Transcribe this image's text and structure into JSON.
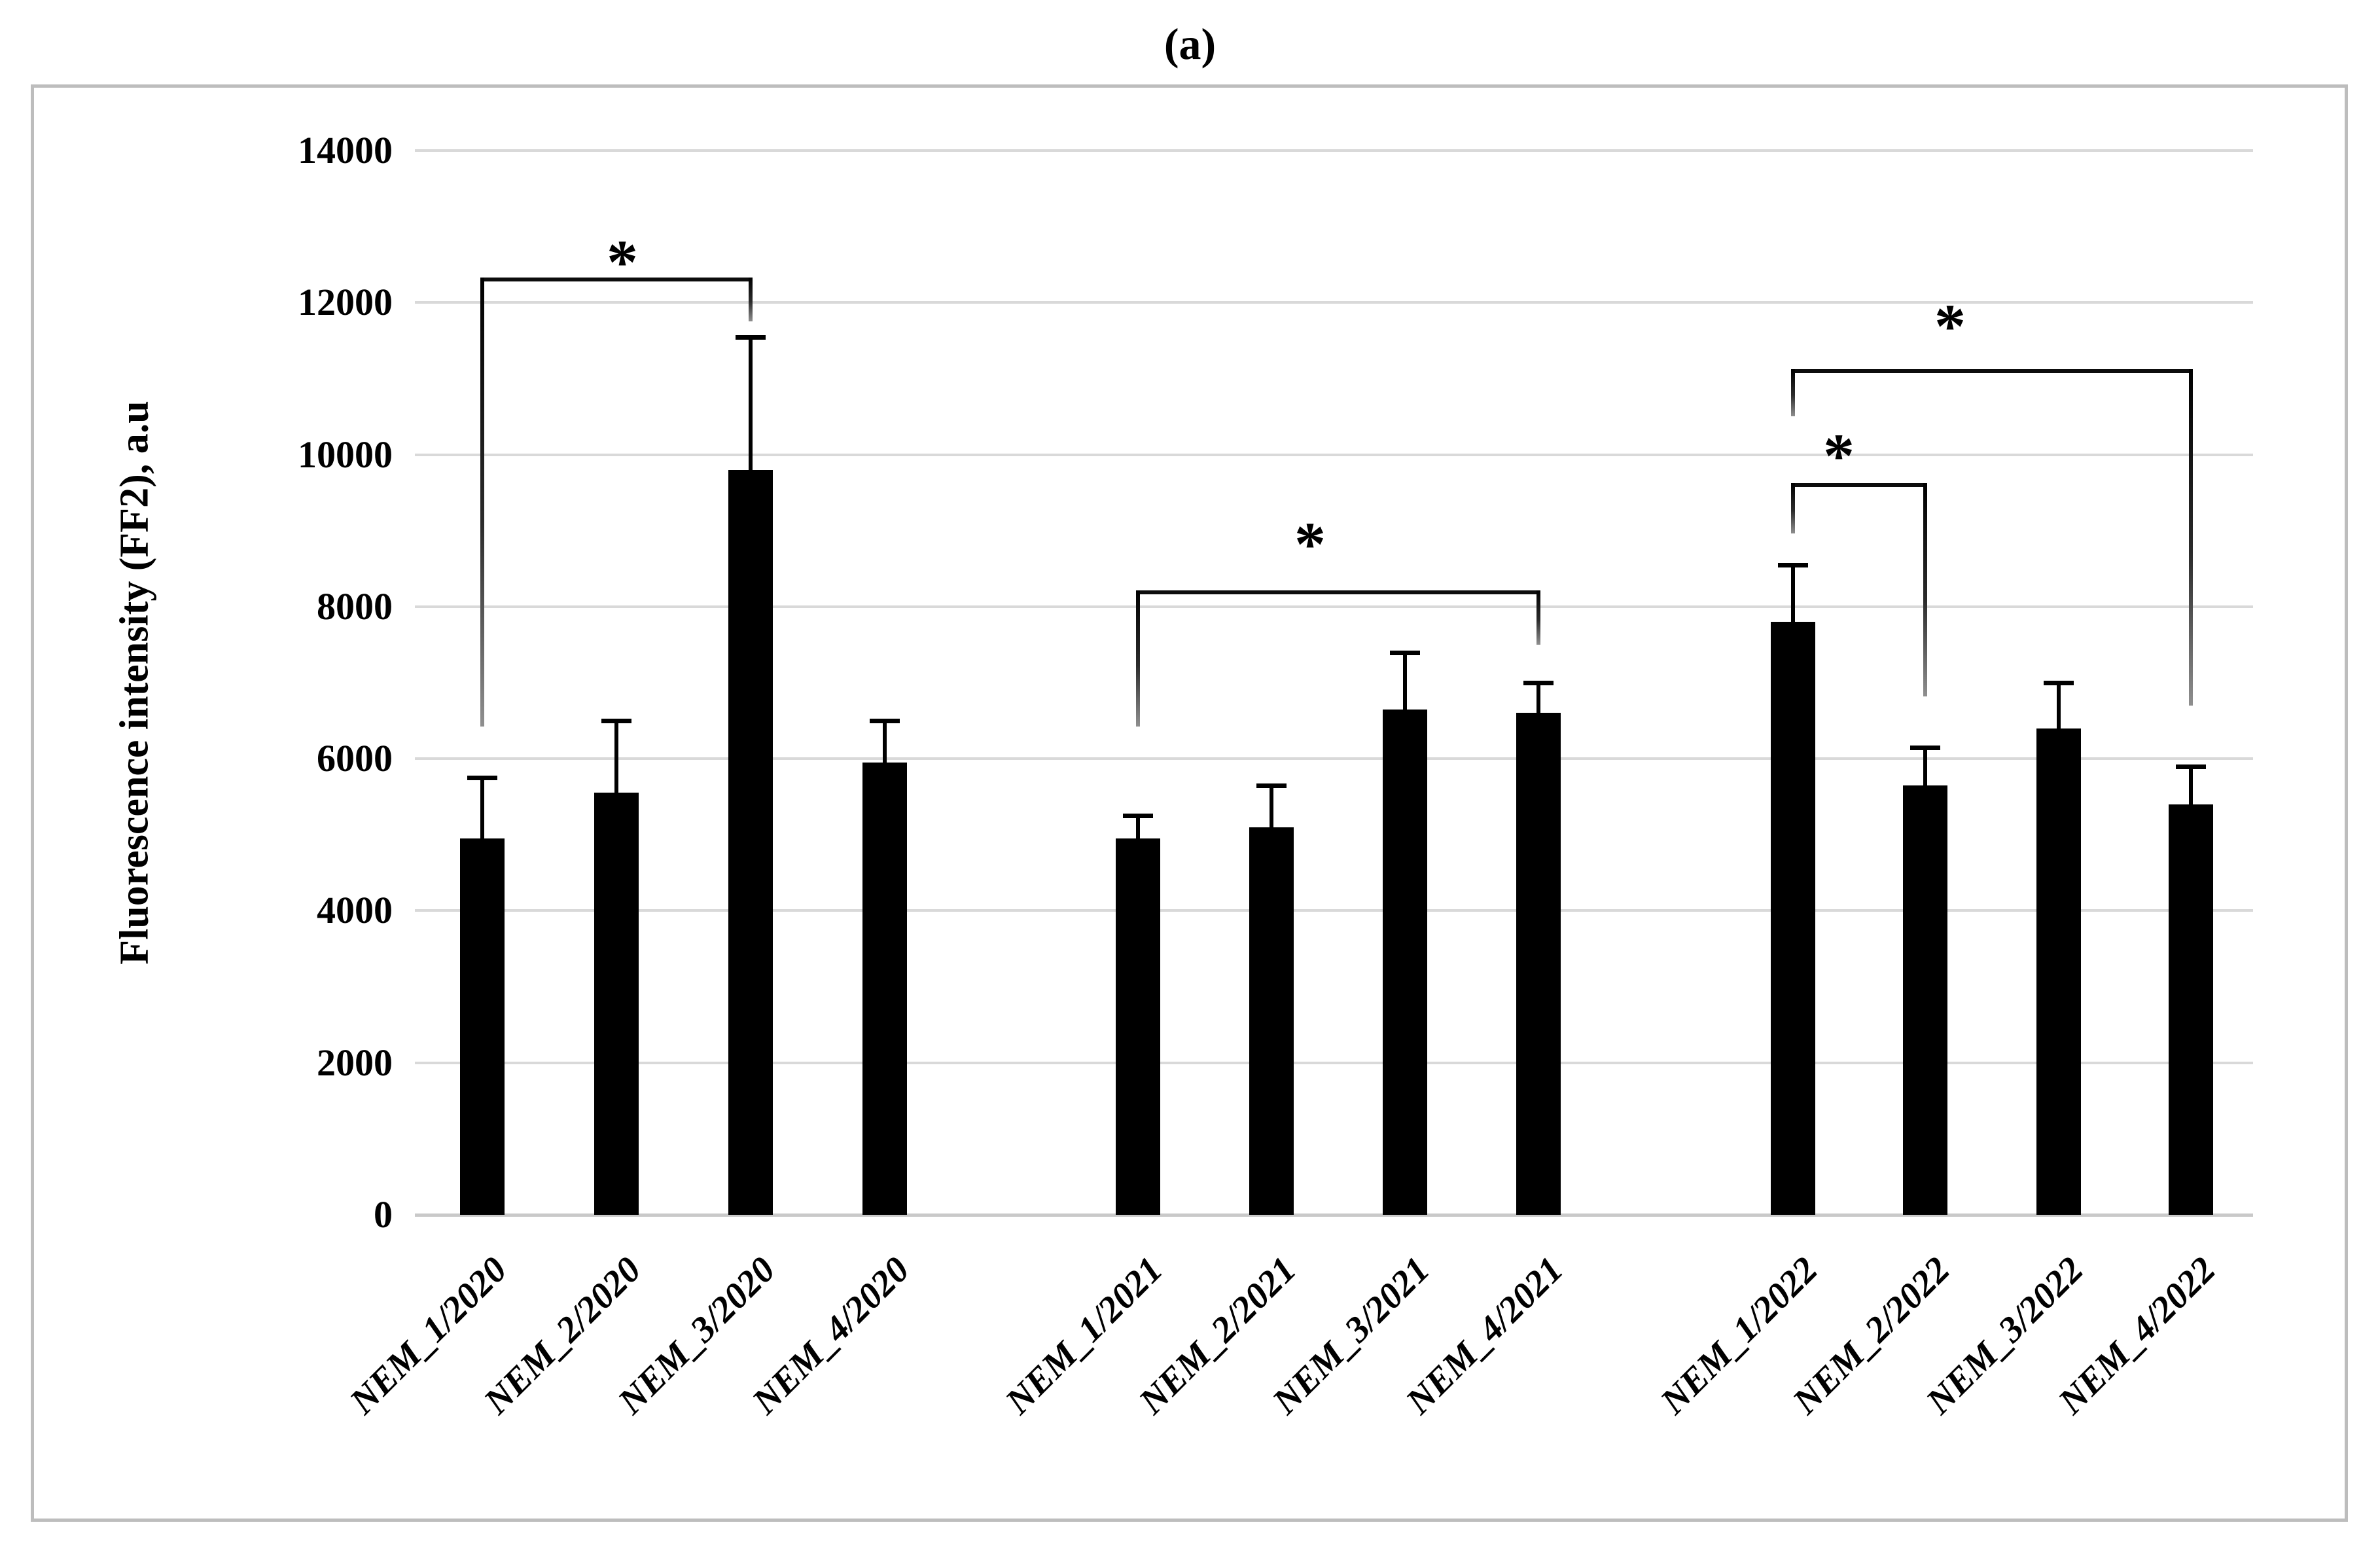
{
  "figure": {
    "panel_label": "(a)",
    "background_color": "#ffffff",
    "border_color": "#bdbdbd",
    "bar_color": "#000000",
    "gridline_color": "#d9d9d9"
  },
  "y_axis": {
    "title": "Fluorescence intensity (FF2), a.u",
    "min": 0,
    "max": 14000,
    "step": 2000,
    "tick_labels": [
      "0",
      "2000",
      "4000",
      "6000",
      "8000",
      "10000",
      "12000",
      "14000"
    ]
  },
  "chart_data": {
    "type": "bar",
    "title": "(a)",
    "xlabel": "",
    "ylabel": "Fluorescence intensity (FF2), a.u",
    "ylim": [
      0,
      14000
    ],
    "grid": true,
    "legend": "none",
    "bar_color": "#000000",
    "categories": [
      "NEM_1/2020",
      "NEM_2/2020",
      "NEM_3/2020",
      "NEM_4/2020",
      "NEM_1/2021",
      "NEM_2/2021",
      "NEM_3/2021",
      "NEM_4/2021",
      "NEM_1/2022",
      "NEM_2/2022",
      "NEM_3/2022",
      "NEM_4/2022"
    ],
    "values": [
      4950,
      5550,
      9800,
      5950,
      4950,
      5100,
      6650,
      6600,
      7800,
      5650,
      6400,
      5400
    ],
    "errors_upper": [
      800,
      950,
      1750,
      550,
      300,
      550,
      750,
      400,
      750,
      500,
      600,
      500
    ],
    "significance_brackets": [
      {
        "label": "*",
        "from": "NEM_1/2020",
        "to": "NEM_3/2020",
        "from_index": 0,
        "to_index": 2,
        "level": 12300,
        "left_drop_to": 6420,
        "right_drop_to": 11750,
        "star_level": 12720,
        "star_x_offset": 9
      },
      {
        "label": "*",
        "from": "NEM_1/2021",
        "to": "NEM_4/2021",
        "from_index": 4,
        "to_index": 7,
        "level": 8190,
        "left_drop_to": 6420,
        "right_drop_to": 7500,
        "star_level": 9010,
        "star_x_offset": -43
      },
      {
        "label": "*",
        "from": "NEM_1/2022",
        "to": "NEM_2/2022",
        "from_index": 8,
        "to_index": 9,
        "level": 9600,
        "left_drop_to": 8960,
        "right_drop_to": 6820,
        "star_level": 10170,
        "star_x_offset": -31
      },
      {
        "label": "*",
        "from": "NEM_1/2022",
        "to": "NEM_4/2022",
        "from_index": 8,
        "to_index": 11,
        "level": 11100,
        "left_drop_to": 10500,
        "right_drop_to": 6700,
        "star_level": 11870,
        "star_x_offset": -64
      }
    ]
  }
}
